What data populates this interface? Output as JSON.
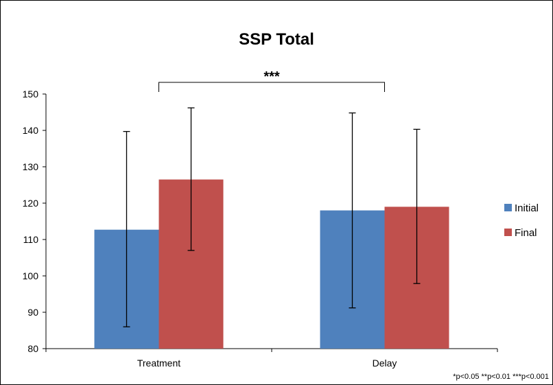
{
  "chart_data": {
    "type": "bar",
    "title": "SSP Total",
    "xlabel": "",
    "ylabel": "",
    "categories": [
      "Treatment",
      "Delay"
    ],
    "ylim": [
      80,
      150
    ],
    "yticks": [
      80,
      90,
      100,
      110,
      120,
      130,
      140,
      150
    ],
    "series": [
      {
        "name": "Initial",
        "color": "#4F81BD",
        "values": [
          112.7,
          118.0
        ],
        "error_low": [
          86.0,
          91.2
        ],
        "error_high": [
          139.7,
          144.8
        ]
      },
      {
        "name": "Final",
        "color": "#C0504D",
        "values": [
          126.5,
          119.0
        ],
        "error_low": [
          107.0,
          97.9
        ],
        "error_high": [
          146.2,
          140.3
        ]
      }
    ],
    "grid": false,
    "legend": "right",
    "annotations": {
      "significance": {
        "label": "***",
        "from_category": "Treatment",
        "to_category": "Delay"
      },
      "footnote": "*p<0.05 **p<0.01 ***p<0.001"
    }
  }
}
